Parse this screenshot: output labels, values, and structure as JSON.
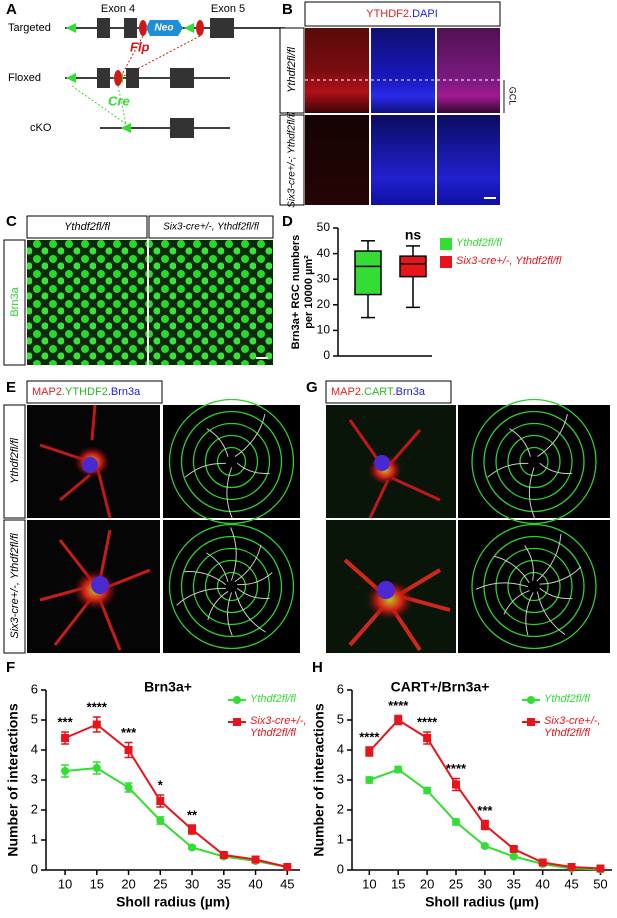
{
  "panel_labels": [
    "A",
    "B",
    "C",
    "D",
    "E",
    "G",
    "F",
    "H"
  ],
  "targeting": {
    "rows": [
      "Targeted",
      "Floxed",
      "cKO"
    ],
    "exon4": "Exon 4",
    "exon5": "Exon 5",
    "neo": "Neo",
    "flp": "Flp",
    "cre": "Cre"
  },
  "staining_b": {
    "header": [
      "YTHDF2",
      ".DAPI"
    ],
    "rows": [
      "Ythdf2fl/fl",
      "Six3-cre+/-; Ythdf2fl/fl"
    ],
    "layer": "GCL"
  },
  "staining_c": {
    "stain": "Brn3a",
    "columns": [
      "Ythdf2fl/fl",
      "Six3-cre+/-, Ythdf2fl/fl"
    ]
  },
  "staining_e": {
    "header": [
      "MAP2",
      ".YTHDF2",
      ".Brn3a"
    ],
    "rows": [
      "Ythdf2fl/fl",
      "Six3-cre+/-, Ythdf2fl/fl"
    ]
  },
  "staining_g": {
    "header": [
      "MAP2",
      ".CART",
      ".Brn3a"
    ]
  },
  "chart_data": [
    {
      "type": "box",
      "ylabel": [
        "Brn3a+ RGC numbers",
        "per 10000 µm²"
      ],
      "ylim": [
        0,
        50
      ],
      "yticks": [
        0,
        10,
        20,
        30,
        40,
        50
      ],
      "annotation": "ns",
      "series": [
        {
          "name": "Ythdf2fl/fl",
          "color": "#33dd33",
          "min": 15,
          "q1": 24,
          "median": 35,
          "q3": 41,
          "max": 45
        },
        {
          "name": "Six3-cre+/-, Ythdf2fl/fl",
          "color": "#e8141c",
          "min": 19,
          "q1": 31,
          "median": 36,
          "q3": 39,
          "max": 43
        }
      ]
    },
    {
      "type": "line",
      "title": "Brn3a+",
      "xlabel": "Sholl radius (µm)",
      "ylabel": "Number of interactions",
      "x": [
        10,
        15,
        20,
        25,
        30,
        35,
        40,
        45
      ],
      "xlim": [
        7,
        47
      ],
      "xticks": [
        10,
        15,
        20,
        25,
        30,
        35,
        40,
        45
      ],
      "ylim": [
        0,
        6
      ],
      "yticks": [
        0,
        1,
        2,
        3,
        4,
        5,
        6
      ],
      "annotations": [
        "***",
        "****",
        "***",
        "*",
        "**"
      ],
      "series": [
        {
          "name": "Ythdf2fl/fl",
          "color": "#33dd33",
          "values": [
            3.3,
            3.4,
            2.75,
            1.65,
            0.75,
            0.45,
            0.3,
            0.1
          ],
          "errors": [
            0.2,
            0.2,
            0.15,
            0.12,
            0.05,
            0.05,
            0.05,
            0.03
          ]
        },
        {
          "name": "Six3-cre+/-, Ythdf2fl/fl",
          "color": "#e8141c",
          "values": [
            4.4,
            4.85,
            4.0,
            2.3,
            1.35,
            0.5,
            0.35,
            0.1
          ],
          "errors": [
            0.2,
            0.25,
            0.25,
            0.2,
            0.15,
            0.05,
            0.05,
            0.03
          ]
        }
      ]
    },
    {
      "type": "line",
      "title": "CART+/Brn3a+",
      "xlabel": "Sholl radius (µm)",
      "ylabel": "Number of interactions",
      "x": [
        10,
        15,
        20,
        25,
        30,
        35,
        40,
        45,
        50
      ],
      "xlim": [
        7,
        52
      ],
      "xticks": [
        10,
        15,
        20,
        25,
        30,
        35,
        40,
        45,
        50
      ],
      "ylim": [
        0,
        6
      ],
      "yticks": [
        0,
        1,
        2,
        3,
        4,
        5,
        6
      ],
      "annotations": [
        "****",
        "****",
        "****",
        "****",
        "***"
      ],
      "series": [
        {
          "name": "Ythdf2fl/fl",
          "color": "#33dd33",
          "values": [
            3.0,
            3.35,
            2.65,
            1.6,
            0.8,
            0.45,
            0.2,
            0.05,
            0.02
          ],
          "errors": [
            0.1,
            0.1,
            0.1,
            0.1,
            0.05,
            0.05,
            0.03,
            0.02,
            0.01
          ]
        },
        {
          "name": "Six3-cre+/-, Ythdf2fl/fl",
          "color": "#e8141c",
          "values": [
            3.95,
            5.0,
            4.4,
            2.85,
            1.5,
            0.7,
            0.25,
            0.1,
            0.05
          ],
          "errors": [
            0.15,
            0.15,
            0.2,
            0.2,
            0.15,
            0.05,
            0.03,
            0.02,
            0.02
          ]
        }
      ]
    }
  ]
}
